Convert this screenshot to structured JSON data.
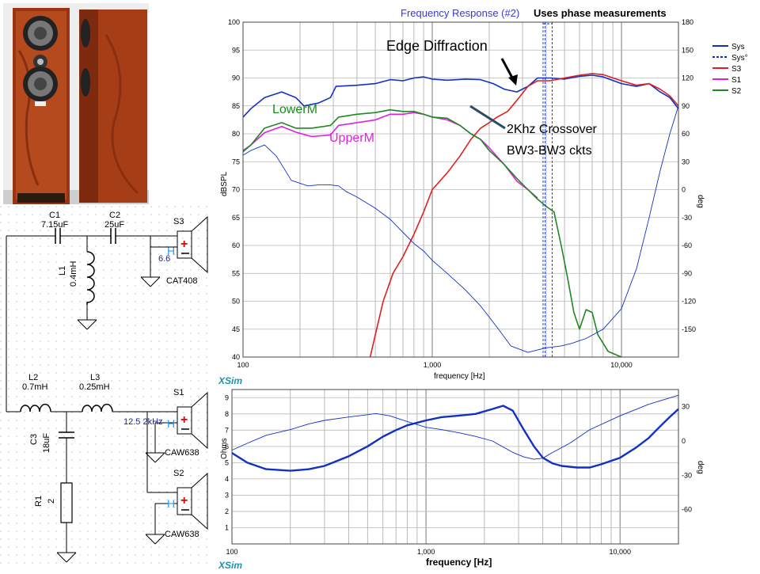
{
  "photo": {
    "description_icon": "speaker-photo"
  },
  "schematic": {
    "components": {
      "c1": {
        "name": "C1",
        "value": "7.15uF"
      },
      "c2": {
        "name": "C2",
        "value": "25uF"
      },
      "l1": {
        "name": "L1",
        "value": "0.4mH"
      },
      "l2": {
        "name": "L2",
        "value": "0.7mH"
      },
      "l3": {
        "name": "L3",
        "value": "0.25mH"
      },
      "c3": {
        "name": "C3",
        "value": "18uF"
      },
      "r1": {
        "name": "R1",
        "value": "2"
      }
    },
    "drivers": {
      "s3": {
        "name": "S3",
        "model": "CAT408",
        "value": "6.6",
        "h": "H"
      },
      "s1": {
        "name": "S1",
        "model": "CAW638",
        "value": "12.5 2kHz",
        "h": "H"
      },
      "s2": {
        "name": "S2",
        "model": "CAW638",
        "h": "H"
      }
    }
  },
  "chart_data": [
    {
      "type": "line",
      "title": "Frequency Response (#2)",
      "subtitle": "Uses phase measurements",
      "xlabel": "frequency [Hz]",
      "ylabel": "dBSPL",
      "y2label": "deg",
      "x_scale": "log",
      "xlim": [
        100,
        20000
      ],
      "ylim": [
        40,
        100
      ],
      "y2lim": [
        -180,
        180
      ],
      "x_ticks": [
        100,
        1000,
        10000
      ],
      "x_tick_labels": [
        "100",
        "1,000",
        "10,000"
      ],
      "y_ticks": [
        40,
        45,
        50,
        55,
        60,
        65,
        70,
        75,
        80,
        85,
        90,
        95,
        100
      ],
      "y2_ticks": [
        180,
        150,
        120,
        90,
        60,
        30,
        0,
        -30,
        -60,
        -90,
        -120,
        -150
      ],
      "grid": true,
      "legend_position": "right",
      "logo": "XSim",
      "series": [
        {
          "name": "Sys",
          "color": "#1030c8",
          "axis": "left",
          "style": "solid",
          "points": [
            [
              100,
              83
            ],
            [
              110,
              84.5
            ],
            [
              130,
              86.5
            ],
            [
              160,
              87.5
            ],
            [
              190,
              86.5
            ],
            [
              210,
              85
            ],
            [
              250,
              85.5
            ],
            [
              290,
              86.5
            ],
            [
              310,
              88.5
            ],
            [
              400,
              88.7
            ],
            [
              500,
              89
            ],
            [
              600,
              89.7
            ],
            [
              700,
              89.5
            ],
            [
              800,
              90
            ],
            [
              900,
              90.2
            ],
            [
              1000,
              89.8
            ],
            [
              1200,
              89.6
            ],
            [
              1500,
              89.8
            ],
            [
              1800,
              89.7
            ],
            [
              2100,
              89
            ],
            [
              2400,
              88
            ],
            [
              2800,
              87.5
            ],
            [
              3200,
              88.5
            ],
            [
              3600,
              90
            ],
            [
              4200,
              90
            ],
            [
              5000,
              89.8
            ],
            [
              6000,
              90.3
            ],
            [
              7000,
              90.5
            ],
            [
              8000,
              90.2
            ],
            [
              10000,
              89
            ],
            [
              12000,
              88.5
            ],
            [
              14000,
              89
            ],
            [
              16000,
              87.5
            ],
            [
              18000,
              86.5
            ],
            [
              20000,
              84.5
            ]
          ]
        },
        {
          "name": "Sys°",
          "color": "#1030c8",
          "axis": "right",
          "style": "dashed",
          "points": []
        },
        {
          "name": "S3",
          "color": "#e02020",
          "axis": "left",
          "style": "solid",
          "points": [
            [
              470,
              40
            ],
            [
              500,
              44
            ],
            [
              550,
              50
            ],
            [
              620,
              55
            ],
            [
              700,
              58
            ],
            [
              800,
              62
            ],
            [
              900,
              66
            ],
            [
              1000,
              70
            ],
            [
              1200,
              73
            ],
            [
              1400,
              76
            ],
            [
              1600,
              79
            ],
            [
              1800,
              81
            ],
            [
              2000,
              82
            ],
            [
              2200,
              83
            ],
            [
              2500,
              84
            ],
            [
              2800,
              86
            ],
            [
              3200,
              88.5
            ],
            [
              3600,
              89.5
            ],
            [
              4200,
              89.5
            ],
            [
              5000,
              90
            ],
            [
              6000,
              90.5
            ],
            [
              7000,
              90.8
            ],
            [
              8000,
              90.6
            ],
            [
              10000,
              89.5
            ],
            [
              12000,
              88.7
            ],
            [
              14000,
              89
            ],
            [
              16000,
              88
            ],
            [
              18000,
              86.8
            ],
            [
              20000,
              85
            ]
          ]
        },
        {
          "name": "S1",
          "color": "#e020e0",
          "axis": "left",
          "style": "solid",
          "points": [
            [
              100,
              77
            ],
            [
              110,
              78
            ],
            [
              130,
              80.2
            ],
            [
              160,
              81.3
            ],
            [
              190,
              80.3
            ],
            [
              230,
              79.5
            ],
            [
              290,
              79.8
            ],
            [
              320,
              81.5
            ],
            [
              400,
              82
            ],
            [
              500,
              82.5
            ],
            [
              600,
              83.5
            ],
            [
              700,
              83.5
            ],
            [
              800,
              83.8
            ],
            [
              900,
              83.5
            ],
            [
              1000,
              83
            ],
            [
              1200,
              82.5
            ],
            [
              1400,
              81.5
            ],
            [
              1600,
              80
            ],
            [
              1800,
              79
            ],
            [
              2000,
              77.5
            ],
            [
              2400,
              74.5
            ],
            [
              2800,
              71.5
            ],
            [
              3200,
              70
            ],
            [
              3600,
              68.5
            ]
          ]
        },
        {
          "name": "S2",
          "color": "#208820",
          "axis": "left",
          "style": "solid",
          "points": [
            [
              100,
              76.8
            ],
            [
              110,
              78
            ],
            [
              130,
              81
            ],
            [
              160,
              82
            ],
            [
              190,
              81
            ],
            [
              230,
              81
            ],
            [
              290,
              81.5
            ],
            [
              320,
              83
            ],
            [
              400,
              83.5
            ],
            [
              500,
              83.8
            ],
            [
              600,
              84.3
            ],
            [
              700,
              84
            ],
            [
              800,
              84
            ],
            [
              900,
              83.5
            ],
            [
              1000,
              83
            ],
            [
              1200,
              82.8
            ],
            [
              1400,
              81.5
            ],
            [
              1600,
              80
            ],
            [
              1800,
              79
            ],
            [
              2000,
              77
            ],
            [
              2400,
              74.5
            ],
            [
              2800,
              72
            ],
            [
              3200,
              70
            ],
            [
              3600,
              68.3
            ],
            [
              4000,
              67
            ],
            [
              4400,
              66
            ],
            [
              4800,
              60
            ],
            [
              5200,
              54
            ],
            [
              5600,
              48
            ],
            [
              6000,
              45
            ],
            [
              6500,
              48.5
            ],
            [
              7000,
              48
            ],
            [
              7500,
              44
            ],
            [
              8500,
              41
            ],
            [
              10000,
              40
            ]
          ]
        },
        {
          "name": "",
          "color": "#1030c8",
          "axis": "right",
          "style": "thin",
          "points": [
            [
              100,
              37
            ],
            [
              110,
              42
            ],
            [
              130,
              48
            ],
            [
              150,
              36
            ],
            [
              180,
              10
            ],
            [
              220,
              4
            ],
            [
              250,
              5
            ],
            [
              290,
              5
            ],
            [
              320,
              4
            ],
            [
              350,
              -2
            ],
            [
              400,
              -8
            ],
            [
              500,
              -20
            ],
            [
              600,
              -32
            ],
            [
              700,
              -46
            ],
            [
              800,
              -58
            ],
            [
              900,
              -66
            ],
            [
              1000,
              -76
            ],
            [
              1200,
              -90
            ],
            [
              1500,
              -108
            ],
            [
              1800,
              -125
            ],
            [
              2200,
              -148
            ],
            [
              2600,
              -168
            ],
            [
              3200,
              -175
            ],
            [
              4000,
              -170
            ],
            [
              4800,
              -168
            ],
            [
              5500,
              -165
            ],
            [
              6500,
              -160
            ],
            [
              8000,
              -150
            ],
            [
              10000,
              -128
            ],
            [
              12000,
              -85
            ],
            [
              14000,
              -30
            ],
            [
              16000,
              20
            ],
            [
              18000,
              60
            ],
            [
              20000,
              90
            ]
          ]
        }
      ],
      "annotations": [
        "Edge Diffraction",
        "LowerM",
        "UpperM",
        "2Khz Crossover",
        "BW3-BW3 ckts"
      ]
    },
    {
      "type": "line",
      "xlabel": "frequency [Hz]",
      "ylabel": "Ohms",
      "y2label": "deg",
      "x_scale": "log",
      "xlim": [
        100,
        20000
      ],
      "ylim": [
        0,
        9.5
      ],
      "y2lim": [
        -90,
        45
      ],
      "x_ticks": [
        100,
        1000,
        10000
      ],
      "x_tick_labels": [
        "100",
        "1,000",
        "10,000"
      ],
      "y_ticks": [
        1,
        2,
        3,
        4,
        5,
        6,
        7,
        8,
        9
      ],
      "y2_ticks": [
        30,
        0,
        -30,
        -60
      ],
      "grid": true,
      "logo": "XSim",
      "series": [
        {
          "name": "Impedance",
          "color": "#1030c8",
          "axis": "left",
          "style": "thick",
          "points": [
            [
              100,
              5.6
            ],
            [
              120,
              5
            ],
            [
              150,
              4.6
            ],
            [
              200,
              4.5
            ],
            [
              250,
              4.6
            ],
            [
              300,
              4.8
            ],
            [
              400,
              5.4
            ],
            [
              500,
              6
            ],
            [
              600,
              6.6
            ],
            [
              700,
              7
            ],
            [
              800,
              7.3
            ],
            [
              1000,
              7.6
            ],
            [
              1200,
              7.8
            ],
            [
              1500,
              7.9
            ],
            [
              1800,
              8
            ],
            [
              2200,
              8.3
            ],
            [
              2500,
              8.5
            ],
            [
              2800,
              8.2
            ],
            [
              3200,
              7
            ],
            [
              3600,
              6
            ],
            [
              4000,
              5.3
            ],
            [
              4500,
              4.95
            ],
            [
              5000,
              4.8
            ],
            [
              6000,
              4.7
            ],
            [
              7000,
              4.7
            ],
            [
              8000,
              4.9
            ],
            [
              10000,
              5.3
            ],
            [
              12000,
              5.9
            ],
            [
              14000,
              6.5
            ],
            [
              16000,
              7.2
            ],
            [
              18000,
              7.8
            ],
            [
              20000,
              8.3
            ]
          ]
        },
        {
          "name": "Phase",
          "color": "#1030c8",
          "axis": "right",
          "style": "thin",
          "points": [
            [
              100,
              -8
            ],
            [
              120,
              -2
            ],
            [
              150,
              5
            ],
            [
              200,
              10
            ],
            [
              250,
              15
            ],
            [
              300,
              18
            ],
            [
              400,
              21
            ],
            [
              500,
              23
            ],
            [
              550,
              24
            ],
            [
              650,
              22
            ],
            [
              800,
              17
            ],
            [
              1000,
              12
            ],
            [
              1200,
              10
            ],
            [
              1500,
              7
            ],
            [
              1800,
              4
            ],
            [
              2200,
              0
            ],
            [
              2800,
              -10
            ],
            [
              3200,
              -14
            ],
            [
              3600,
              -16
            ],
            [
              4000,
              -15
            ],
            [
              4500,
              -10
            ],
            [
              5500,
              -2
            ],
            [
              7000,
              10
            ],
            [
              10000,
              22
            ],
            [
              14000,
              32
            ],
            [
              20000,
              40
            ]
          ]
        }
      ]
    }
  ]
}
